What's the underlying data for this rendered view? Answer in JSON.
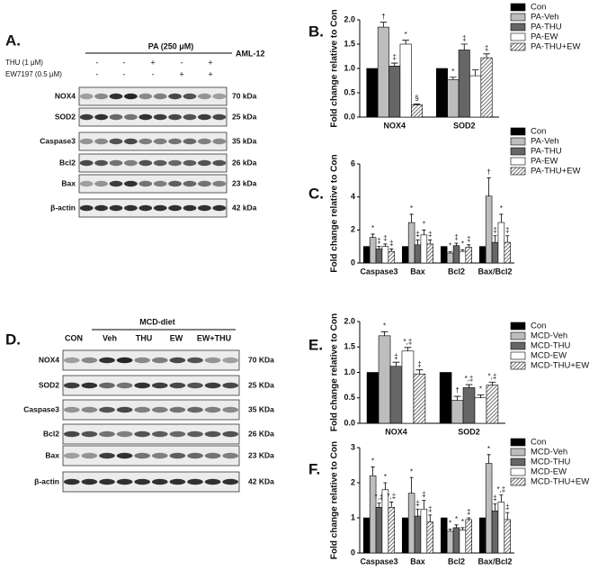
{
  "blots": [
    {
      "panel_label": "A.",
      "header": "PA (250 μM)",
      "model": "AML-12",
      "conditions": [
        {
          "label": "THU (1 μM)",
          "signs": [
            "-",
            "-",
            "+",
            "-",
            "+"
          ]
        },
        {
          "label": "EW7197 (0.5 μM)",
          "signs": [
            "-",
            "-",
            "-",
            "+",
            "+"
          ]
        }
      ],
      "bands": [
        {
          "protein": "NOX4",
          "size": "70 kDa"
        },
        {
          "protein": "SOD2",
          "size": "25 kDa"
        },
        {
          "protein": "Caspase3",
          "size": "35 kDa"
        },
        {
          "protein": "Bcl2",
          "size": "26 kDa"
        },
        {
          "protein": "Bax",
          "size": "23 kDa"
        },
        {
          "protein": "β-actin",
          "size": "42 kDa"
        }
      ]
    },
    {
      "panel_label": "D.",
      "header": "MCD-diet",
      "lanes": [
        "CON",
        "Veh",
        "THU",
        "EW",
        "EW+THU"
      ],
      "bands": [
        {
          "protein": "NOX4",
          "size": "70 KDa"
        },
        {
          "protein": "SOD2",
          "size": "25 KDa"
        },
        {
          "protein": "Caspase3",
          "size": "35 KDa"
        },
        {
          "protein": "Bcl2",
          "size": "26 KDa"
        },
        {
          "protein": "Bax",
          "size": "23 KDa"
        },
        {
          "protein": "β-actin",
          "size": "42 KDa"
        }
      ]
    }
  ],
  "chart_data": [
    {
      "type": "bar",
      "panel_label": "B.",
      "ylabel": "Fold change relative to Con",
      "categories": [
        "NOX4",
        "SOD2"
      ],
      "ylim": [
        0,
        2
      ],
      "yticks": [
        {
          "value": 0,
          "label": "0.0"
        },
        {
          "value": 0.5,
          "label": "0.5"
        },
        {
          "value": 1,
          "label": "1.0"
        },
        {
          "value": 1.5,
          "label": "1.5"
        },
        {
          "value": 2,
          "label": "2.0"
        }
      ],
      "series": [
        {
          "name": "Con",
          "color": "#000000",
          "values": [
            1,
            1
          ]
        },
        {
          "name": "PA-Veh",
          "color": "#bdbdbd",
          "values": [
            1.85,
            0.77
          ],
          "errors": [
            0.1,
            0.05
          ],
          "markers": [
            "†",
            "*"
          ]
        },
        {
          "name": "PA-THU",
          "color": "#666666",
          "values": [
            1.05,
            1.38
          ],
          "errors": [
            0.06,
            0.12
          ],
          "markers": [
            "‡",
            "‡"
          ]
        },
        {
          "name": "PA-EW",
          "color": "#ffffff",
          "values": [
            1.5,
            0.85
          ],
          "errors": [
            0.08,
            0.12
          ],
          "markers": [
            "*",
            null
          ]
        },
        {
          "name": "PA-THU+EW",
          "color": "#ffffff",
          "hatch": true,
          "values": [
            0.25,
            1.22
          ],
          "errors": [
            0.02,
            0.08
          ],
          "markers": [
            "§",
            "‡"
          ]
        }
      ]
    },
    {
      "type": "bar",
      "panel_label": "C.",
      "ylabel": "Fold change relative to Con",
      "categories": [
        "Caspase3",
        "Bax",
        "Bcl2",
        "Bax/Bcl2"
      ],
      "ylim": [
        0,
        6
      ],
      "yticks": [
        0,
        2,
        4,
        6
      ],
      "series": [
        {
          "name": "Con",
          "color": "#000000",
          "values": [
            1,
            1,
            1,
            1
          ]
        },
        {
          "name": "PA-Veh",
          "color": "#bdbdbd",
          "values": [
            1.55,
            2.45,
            0.6,
            4.05
          ],
          "errors": [
            0.2,
            0.5,
            0.08,
            1.1
          ],
          "markers": [
            "*",
            "*",
            "*",
            "†"
          ]
        },
        {
          "name": "PA-THU",
          "color": "#666666",
          "values": [
            0.85,
            1.1,
            1.05,
            1.25
          ],
          "errors": [
            0.15,
            0.3,
            0.15,
            0.4
          ],
          "markers": [
            "‡",
            "‡",
            "‡",
            "‡"
          ]
        },
        {
          "name": "PA-EW",
          "color": "#ffffff",
          "values": [
            1.0,
            1.7,
            0.7,
            2.45
          ],
          "errors": [
            0.15,
            0.3,
            0.1,
            0.5
          ],
          "markers": [
            "‡",
            "*",
            "*",
            "*"
          ]
        },
        {
          "name": "PA-THU+EW",
          "color": "#ffffff",
          "hatch": true,
          "values": [
            0.7,
            1.15,
            0.95,
            1.25
          ],
          "errors": [
            0.15,
            0.25,
            0.15,
            0.4
          ],
          "markers": [
            "‡",
            "‡",
            "‡",
            "‡"
          ]
        }
      ]
    },
    {
      "type": "bar",
      "panel_label": "E.",
      "ylabel": "Fold change relative to Con",
      "categories": [
        "NOX4",
        "SOD2"
      ],
      "ylim": [
        0,
        2
      ],
      "yticks": [
        {
          "value": 0,
          "label": "0.0"
        },
        {
          "value": 0.5,
          "label": "0.5"
        },
        {
          "value": 1,
          "label": "1.0"
        },
        {
          "value": 1.5,
          "label": "1.5"
        },
        {
          "value": 2,
          "label": "2.0"
        }
      ],
      "series": [
        {
          "name": "Con",
          "color": "#000000",
          "values": [
            1,
            1
          ]
        },
        {
          "name": "MCD-Veh",
          "color": "#bdbdbd",
          "values": [
            1.72,
            0.45
          ],
          "errors": [
            0.08,
            0.08
          ],
          "markers": [
            "*",
            "†"
          ]
        },
        {
          "name": "MCD-THU",
          "color": "#666666",
          "values": [
            1.12,
            0.7
          ],
          "errors": [
            0.08,
            0.06
          ],
          "markers": [
            "‡",
            "*,‡"
          ]
        },
        {
          "name": "MCD-EW",
          "color": "#ffffff",
          "values": [
            1.42,
            0.5
          ],
          "errors": [
            0.07,
            0.06
          ],
          "markers": [
            "*,‡",
            "*"
          ]
        },
        {
          "name": "MCD-THU+EW",
          "color": "#ffffff",
          "hatch": true,
          "values": [
            0.97,
            0.75
          ],
          "errors": [
            0.08,
            0.06
          ],
          "markers": [
            "‡",
            "*,‡"
          ]
        }
      ]
    },
    {
      "type": "bar",
      "panel_label": "F.",
      "ylabel": "Fold change relative to Con",
      "categories": [
        "Caspase3",
        "Bax",
        "Bcl2",
        "Bax/Bcl2"
      ],
      "ylim": [
        0,
        3
      ],
      "yticks": [
        0,
        1,
        2,
        3
      ],
      "series": [
        {
          "name": "Con",
          "color": "#000000",
          "values": [
            1,
            1,
            1,
            1
          ]
        },
        {
          "name": "MCD-Veh",
          "color": "#bdbdbd",
          "values": [
            2.2,
            1.7,
            0.62,
            2.55
          ],
          "errors": [
            0.25,
            0.45,
            0.06,
            0.25
          ],
          "markers": [
            "*",
            "*",
            "*",
            "*"
          ]
        },
        {
          "name": "MCD-THU",
          "color": "#666666",
          "values": [
            1.3,
            1.05,
            0.72,
            1.2
          ],
          "errors": [
            0.12,
            0.2,
            0.08,
            0.2
          ],
          "markers": [
            "*,‡",
            "‡",
            "*",
            "‡"
          ]
        },
        {
          "name": "MCD-EW",
          "color": "#ffffff",
          "values": [
            1.8,
            1.25,
            0.65,
            1.45
          ],
          "errors": [
            0.2,
            0.25,
            0.07,
            0.2
          ],
          "markers": [
            "*",
            "‡",
            "*",
            "*,‡"
          ]
        },
        {
          "name": "MCD-THU+EW",
          "color": "#ffffff",
          "hatch": true,
          "values": [
            1.3,
            0.88,
            0.95,
            0.95
          ],
          "errors": [
            0.15,
            0.2,
            0.05,
            0.2
          ],
          "markers": [
            "*,‡",
            "‡",
            "‡",
            "‡"
          ]
        }
      ]
    }
  ]
}
